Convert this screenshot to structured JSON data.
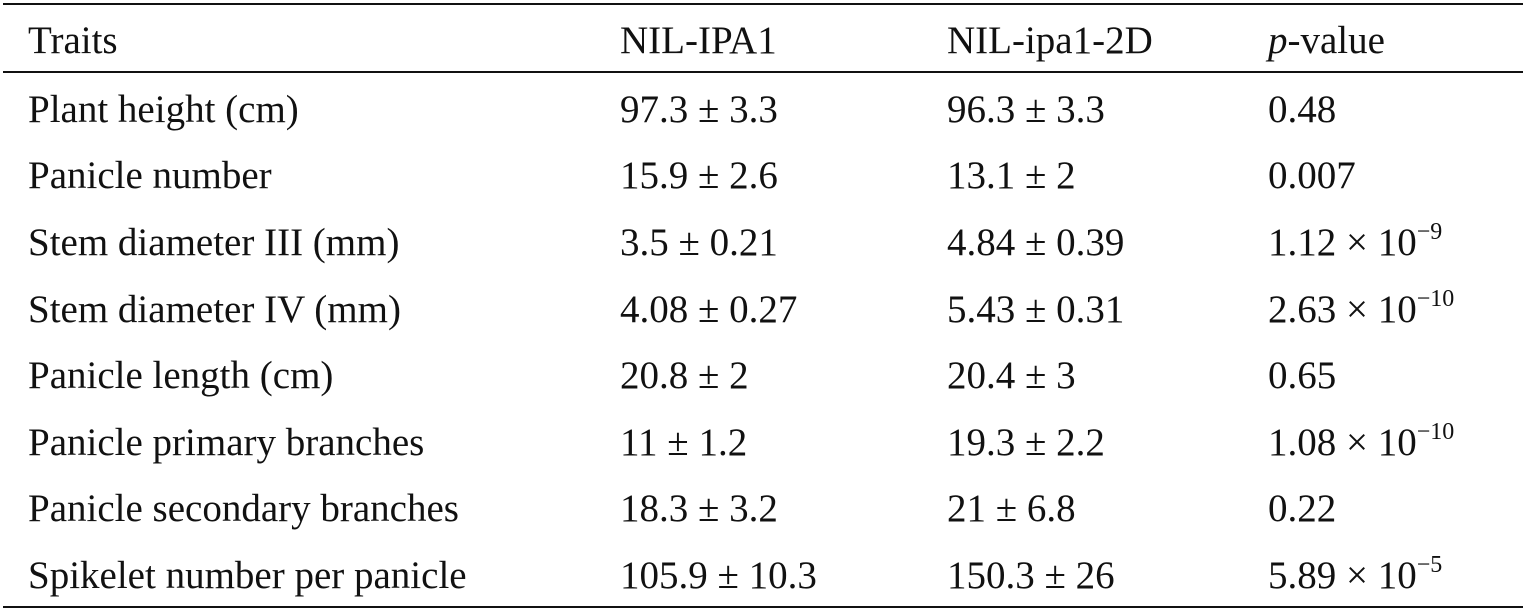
{
  "table": {
    "headers": {
      "traits": "Traits",
      "nil_ipa1": "NIL-IPA1",
      "nil_ipa1_2d": "NIL-ipa1-2D",
      "p_italic": "p",
      "p_rest": "-value"
    },
    "rows": [
      {
        "trait": "Plant height (cm)",
        "ipa1": "97.3 ± 3.3",
        "ipa1_2d": "96.3 ± 3.3",
        "p": "0.48",
        "p_exp": ""
      },
      {
        "trait": "Panicle number",
        "ipa1": "15.9 ± 2.6",
        "ipa1_2d": "13.1 ± 2",
        "p": "0.007",
        "p_exp": ""
      },
      {
        "trait": "Stem diameter III (mm)",
        "ipa1": "3.5 ± 0.21",
        "ipa1_2d": "4.84 ± 0.39",
        "p": "1.12 × 10",
        "p_exp": "−9"
      },
      {
        "trait": "Stem diameter IV (mm)",
        "ipa1": "4.08 ± 0.27",
        "ipa1_2d": "5.43 ± 0.31",
        "p": "2.63 × 10",
        "p_exp": "−10"
      },
      {
        "trait": "Panicle length (cm)",
        "ipa1": "20.8 ± 2",
        "ipa1_2d": "20.4 ± 3",
        "p": "0.65",
        "p_exp": ""
      },
      {
        "trait": "Panicle primary branches",
        "ipa1": "11 ± 1.2",
        "ipa1_2d": "19.3 ± 2.2",
        "p": "1.08 × 10",
        "p_exp": "−10"
      },
      {
        "trait": "Panicle secondary branches",
        "ipa1": "18.3 ± 3.2",
        "ipa1_2d": "21 ± 6.8",
        "p": "0.22",
        "p_exp": ""
      },
      {
        "trait": "Spikelet number per panicle",
        "ipa1": "105.9 ± 10.3",
        "ipa1_2d": "150.3 ± 26",
        "p": "5.89 × 10",
        "p_exp": "−5"
      }
    ]
  }
}
